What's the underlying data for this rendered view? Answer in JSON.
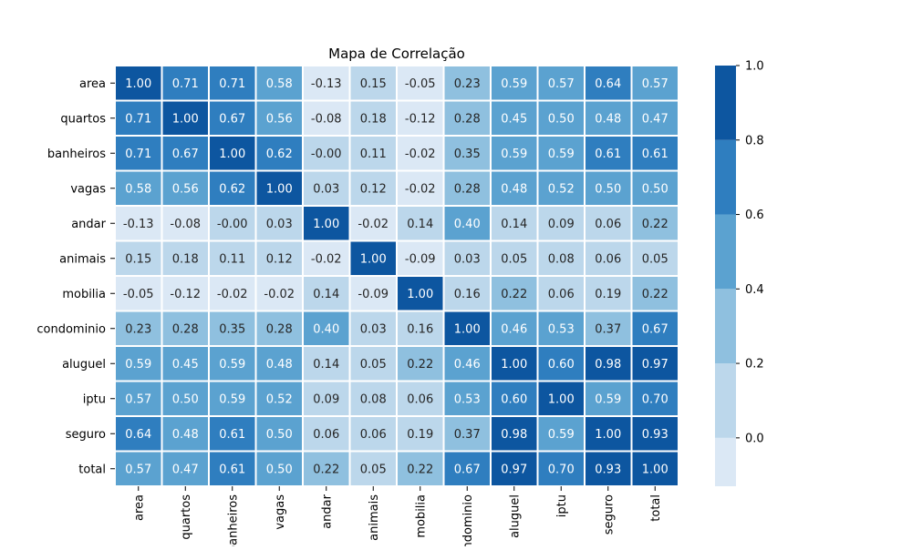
{
  "chart_data": {
    "type": "heatmap",
    "title": "Mapa de Correlação",
    "xlabel": "",
    "ylabel": "",
    "rows": [
      "area",
      "quartos",
      "banheiros",
      "vagas",
      "andar",
      "animais",
      "mobilia",
      "condominio",
      "aluguel",
      "iptu",
      "seguro",
      "total"
    ],
    "columns": [
      "area",
      "quartos",
      "banheiros",
      "vagas",
      "andar",
      "animais",
      "mobilia",
      "condominio",
      "aluguel",
      "iptu",
      "seguro",
      "total"
    ],
    "values": [
      [
        1.0,
        0.71,
        0.71,
        0.58,
        -0.13,
        0.15,
        -0.05,
        0.23,
        0.59,
        0.57,
        0.64,
        0.57
      ],
      [
        0.71,
        1.0,
        0.67,
        0.56,
        -0.08,
        0.18,
        -0.12,
        0.28,
        0.45,
        0.5,
        0.48,
        0.47
      ],
      [
        0.71,
        0.67,
        1.0,
        0.62,
        -0.0,
        0.11,
        -0.02,
        0.35,
        0.59,
        0.59,
        0.61,
        0.61
      ],
      [
        0.58,
        0.56,
        0.62,
        1.0,
        0.03,
        0.12,
        -0.02,
        0.28,
        0.48,
        0.52,
        0.5,
        0.5
      ],
      [
        -0.13,
        -0.08,
        -0.0,
        0.03,
        1.0,
        -0.02,
        0.14,
        0.4,
        0.14,
        0.09,
        0.06,
        0.22
      ],
      [
        0.15,
        0.18,
        0.11,
        0.12,
        -0.02,
        1.0,
        -0.09,
        0.03,
        0.05,
        0.08,
        0.06,
        0.05
      ],
      [
        -0.05,
        -0.12,
        -0.02,
        -0.02,
        0.14,
        -0.09,
        1.0,
        0.16,
        0.22,
        0.06,
        0.19,
        0.22
      ],
      [
        0.23,
        0.28,
        0.35,
        0.28,
        0.4,
        0.03,
        0.16,
        1.0,
        0.46,
        0.53,
        0.37,
        0.67
      ],
      [
        0.59,
        0.45,
        0.59,
        0.48,
        0.14,
        0.05,
        0.22,
        0.46,
        1.0,
        0.6,
        0.98,
        0.97
      ],
      [
        0.57,
        0.5,
        0.59,
        0.52,
        0.09,
        0.08,
        0.06,
        0.53,
        0.6,
        1.0,
        0.59,
        0.7
      ],
      [
        0.64,
        0.48,
        0.61,
        0.5,
        0.06,
        0.06,
        0.19,
        0.37,
        0.98,
        0.59,
        1.0,
        0.93
      ],
      [
        0.57,
        0.47,
        0.61,
        0.5,
        0.22,
        0.05,
        0.22,
        0.67,
        0.97,
        0.7,
        0.93,
        1.0
      ]
    ],
    "value_labels": [
      [
        "1.00",
        "0.71",
        "0.71",
        "0.58",
        "-0.13",
        "0.15",
        "-0.05",
        "0.23",
        "0.59",
        "0.57",
        "0.64",
        "0.57"
      ],
      [
        "0.71",
        "1.00",
        "0.67",
        "0.56",
        "-0.08",
        "0.18",
        "-0.12",
        "0.28",
        "0.45",
        "0.50",
        "0.48",
        "0.47"
      ],
      [
        "0.71",
        "0.67",
        "1.00",
        "0.62",
        "-0.00",
        "0.11",
        "-0.02",
        "0.35",
        "0.59",
        "0.59",
        "0.61",
        "0.61"
      ],
      [
        "0.58",
        "0.56",
        "0.62",
        "1.00",
        "0.03",
        "0.12",
        "-0.02",
        "0.28",
        "0.48",
        "0.52",
        "0.50",
        "0.50"
      ],
      [
        "-0.13",
        "-0.08",
        "-0.00",
        "0.03",
        "1.00",
        "-0.02",
        "0.14",
        "0.40",
        "0.14",
        "0.09",
        "0.06",
        "0.22"
      ],
      [
        "0.15",
        "0.18",
        "0.11",
        "0.12",
        "-0.02",
        "1.00",
        "-0.09",
        "0.03",
        "0.05",
        "0.08",
        "0.06",
        "0.05"
      ],
      [
        "-0.05",
        "-0.12",
        "-0.02",
        "-0.02",
        "0.14",
        "-0.09",
        "1.00",
        "0.16",
        "0.22",
        "0.06",
        "0.19",
        "0.22"
      ],
      [
        "0.23",
        "0.28",
        "0.35",
        "0.28",
        "0.40",
        "0.03",
        "0.16",
        "1.00",
        "0.46",
        "0.53",
        "0.37",
        "0.67"
      ],
      [
        "0.59",
        "0.45",
        "0.59",
        "0.48",
        "0.14",
        "0.05",
        "0.22",
        "0.46",
        "1.00",
        "0.60",
        "0.98",
        "0.97"
      ],
      [
        "0.57",
        "0.50",
        "0.59",
        "0.52",
        "0.09",
        "0.08",
        "0.06",
        "0.53",
        "0.60",
        "1.00",
        "0.59",
        "0.70"
      ],
      [
        "0.64",
        "0.48",
        "0.61",
        "0.50",
        "0.06",
        "0.06",
        "0.19",
        "0.37",
        "0.98",
        "0.59",
        "1.00",
        "0.93"
      ],
      [
        "0.57",
        "0.47",
        "0.61",
        "0.50",
        "0.22",
        "0.05",
        "0.22",
        "0.67",
        "0.97",
        "0.70",
        "0.93",
        "1.00"
      ]
    ],
    "vmin": -0.13,
    "vmax": 1.0,
    "colormap_bins": [
      {
        "from": -0.13,
        "to": 0.0,
        "color": "#dbe8f5"
      },
      {
        "from": 0.0,
        "to": 0.2,
        "color": "#bcd7eb"
      },
      {
        "from": 0.2,
        "to": 0.4,
        "color": "#8fc0df"
      },
      {
        "from": 0.4,
        "to": 0.6,
        "color": "#5ba2d0"
      },
      {
        "from": 0.6,
        "to": 0.8,
        "color": "#2f7ebf"
      },
      {
        "from": 0.8,
        "to": 1.0,
        "color": "#0d56a0"
      }
    ],
    "colorbar_ticks": [
      0.0,
      0.2,
      0.4,
      0.6,
      0.8,
      1.0
    ],
    "colorbar_tick_labels": [
      "0.0",
      "0.2",
      "0.4",
      "0.6",
      "0.8",
      "1.0"
    ],
    "dark_text_color": "#262626",
    "light_text_color": "#ffffff",
    "legend": "colorbar-right"
  }
}
